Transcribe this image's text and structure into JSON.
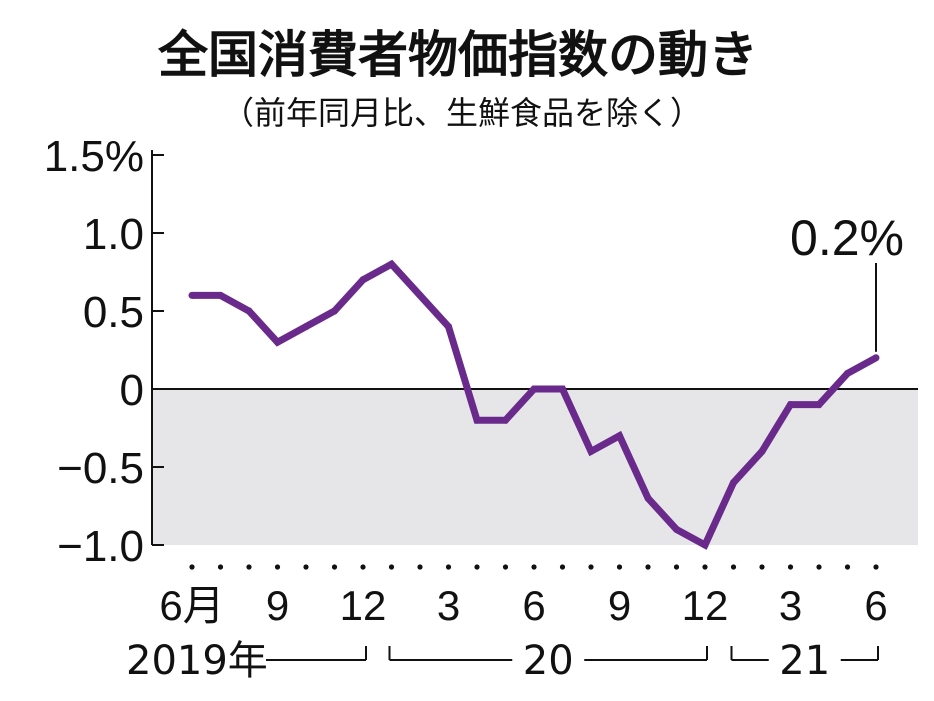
{
  "title": "全国消費者物価指数の動き",
  "subtitle": "（前年同月比、生鮮食品を除く）",
  "colors": {
    "line": "#6a2a8c",
    "negative_shade": "#e6e6e9",
    "axis": "#111111"
  },
  "chart_data": {
    "type": "line",
    "title": "全国消費者物価指数の動き",
    "subtitle": "（前年同月比、生鮮食品を除く）",
    "ylim": [
      -1.0,
      1.5
    ],
    "y_ticks": [
      {
        "value": 1.5,
        "label": "1.5%"
      },
      {
        "value": 1.0,
        "label": "1.0"
      },
      {
        "value": 0.5,
        "label": "0.5"
      },
      {
        "value": 0,
        "label": "0"
      },
      {
        "value": -0.5,
        "label": "−0.5"
      },
      {
        "value": -1.0,
        "label": "−1.0"
      }
    ],
    "x": [
      "2019-06",
      "2019-07",
      "2019-08",
      "2019-09",
      "2019-10",
      "2019-11",
      "2019-12",
      "2020-01",
      "2020-02",
      "2020-03",
      "2020-04",
      "2020-05",
      "2020-06",
      "2020-07",
      "2020-08",
      "2020-09",
      "2020-10",
      "2020-11",
      "2020-12",
      "2021-01",
      "2021-02",
      "2021-03",
      "2021-04",
      "2021-05",
      "2021-06"
    ],
    "values": [
      0.6,
      0.6,
      0.5,
      0.3,
      0.4,
      0.5,
      0.7,
      0.8,
      0.6,
      0.4,
      -0.2,
      -0.2,
      0.0,
      0.0,
      -0.4,
      -0.3,
      -0.7,
      -0.9,
      -1.0,
      -0.6,
      -0.4,
      -0.1,
      -0.1,
      0.1,
      0.2
    ],
    "x_tick_labels": [
      {
        "index": 0,
        "label": "6月"
      },
      {
        "index": 3,
        "label": "9"
      },
      {
        "index": 6,
        "label": "12"
      },
      {
        "index": 9,
        "label": "3"
      },
      {
        "index": 12,
        "label": "6"
      },
      {
        "index": 15,
        "label": "9"
      },
      {
        "index": 18,
        "label": "12"
      },
      {
        "index": 21,
        "label": "3"
      },
      {
        "index": 24,
        "label": "6"
      }
    ],
    "year_labels": [
      {
        "label": "2019年",
        "from": 0,
        "to": 6
      },
      {
        "label": "20",
        "from": 7,
        "to": 18
      },
      {
        "label": "21",
        "from": 19,
        "to": 24
      }
    ],
    "annotation": {
      "index": 24,
      "label": "0.2%"
    },
    "grid": false,
    "shaded_region": "below zero"
  }
}
